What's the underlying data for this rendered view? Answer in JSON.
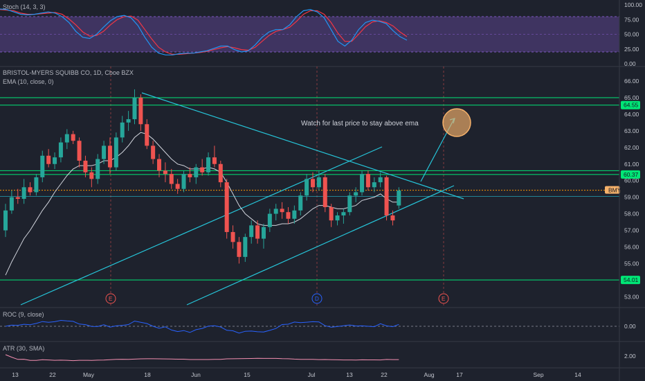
{
  "stoch_pane": {
    "label": "Stoch (14, 3, 3)",
    "ticks": [
      "100.00",
      "75.00",
      "50.00",
      "25.00",
      "0.00"
    ],
    "k_values": [
      93,
      92,
      88,
      84,
      83,
      84,
      86,
      88,
      86,
      80,
      70,
      55,
      45,
      43,
      50,
      62,
      73,
      80,
      82,
      78,
      65,
      45,
      28,
      18,
      15,
      15,
      17,
      18,
      18,
      20,
      22,
      26,
      30,
      30,
      24,
      20,
      22,
      32,
      45,
      54,
      58,
      58,
      66,
      80,
      90,
      92,
      88,
      78,
      58,
      38,
      30,
      40,
      58,
      70,
      74,
      72,
      68,
      56,
      46,
      40
    ],
    "d_values": [
      92,
      91,
      90,
      86,
      84,
      84,
      85,
      86,
      87,
      84,
      76,
      66,
      54,
      47,
      48,
      55,
      66,
      75,
      80,
      81,
      74,
      58,
      42,
      28,
      20,
      16,
      16,
      17,
      18,
      19,
      21,
      24,
      27,
      29,
      27,
      24,
      23,
      28,
      38,
      48,
      55,
      58,
      62,
      72,
      84,
      90,
      90,
      84,
      70,
      52,
      38,
      38,
      50,
      63,
      71,
      73,
      70,
      64,
      54,
      46
    ],
    "k_color": "#2196f3",
    "d_color": "#f23645",
    "band_color": "#7e57c2"
  },
  "main_pane": {
    "symbol_label": "BRISTOL-MYERS SQUIBB CO, 1D, Cboe BZX",
    "ema_label": "EMA (10, close, 0)",
    "price_ticks": [
      "66.00",
      "65.00",
      "64.00",
      "63.00",
      "62.00",
      "61.00",
      "60.00",
      "59.00",
      "58.00",
      "57.00",
      "56.00",
      "55.00",
      "54.00",
      "53.00"
    ],
    "level_tags": [
      {
        "text": "64.55",
        "price": 64.55
      },
      {
        "text": "60.37",
        "price": 60.37
      },
      {
        "text": "54.01",
        "price": 54.01
      }
    ],
    "last_price_tag": "BMY",
    "last_price": 59.42,
    "annotation": "Watch for last price to stay above ema",
    "earnings_markers": [
      "E",
      "D",
      "E"
    ],
    "up_color": "#26a69a",
    "down_color": "#ef5350",
    "level_color": "#00e676",
    "trendline_color": "#26c6da",
    "circle_color": "#f6b26b"
  },
  "candles": [
    [
      57.0,
      58.6,
      56.6,
      58.2
    ],
    [
      58.2,
      59.4,
      58.0,
      59.0
    ],
    [
      59.0,
      59.5,
      58.6,
      58.9
    ],
    [
      58.9,
      60.1,
      58.6,
      59.6
    ],
    [
      59.6,
      59.9,
      59.1,
      59.3
    ],
    [
      59.3,
      60.4,
      59.1,
      60.2
    ],
    [
      60.2,
      61.8,
      59.9,
      61.5
    ],
    [
      61.5,
      61.9,
      60.8,
      61.0
    ],
    [
      61.0,
      61.7,
      60.7,
      61.4
    ],
    [
      61.4,
      62.6,
      61.1,
      62.3
    ],
    [
      62.3,
      63.1,
      61.9,
      62.8
    ],
    [
      62.8,
      63.0,
      62.2,
      62.4
    ],
    [
      62.4,
      62.6,
      60.8,
      61.2
    ],
    [
      61.2,
      61.5,
      60.2,
      60.5
    ],
    [
      60.5,
      60.8,
      59.6,
      60.1
    ],
    [
      60.1,
      61.6,
      59.8,
      61.3
    ],
    [
      61.3,
      62.4,
      61.0,
      62.1
    ],
    [
      62.1,
      62.6,
      60.4,
      60.8
    ],
    [
      60.8,
      62.9,
      60.6,
      62.6
    ],
    [
      62.6,
      63.9,
      62.3,
      63.5
    ],
    [
      63.5,
      64.2,
      63.0,
      63.7
    ],
    [
      63.7,
      65.5,
      63.4,
      65.0
    ],
    [
      65.0,
      65.2,
      63.0,
      63.4
    ],
    [
      63.4,
      63.7,
      61.9,
      62.1
    ],
    [
      62.1,
      62.4,
      61.0,
      61.3
    ],
    [
      61.3,
      61.6,
      60.2,
      60.6
    ],
    [
      60.6,
      61.1,
      59.9,
      60.4
    ],
    [
      60.4,
      60.7,
      59.5,
      59.8
    ],
    [
      59.8,
      60.1,
      59.2,
      59.5
    ],
    [
      59.5,
      60.6,
      59.3,
      60.4
    ],
    [
      60.4,
      60.8,
      59.9,
      60.2
    ],
    [
      60.2,
      61.0,
      59.8,
      60.8
    ],
    [
      60.8,
      61.3,
      60.3,
      60.5
    ],
    [
      60.5,
      61.7,
      60.3,
      61.4
    ],
    [
      61.4,
      62.1,
      60.8,
      61.0
    ],
    [
      61.0,
      61.2,
      59.6,
      59.9
    ],
    [
      59.9,
      60.1,
      56.5,
      56.9
    ],
    [
      56.9,
      57.3,
      55.9,
      56.3
    ],
    [
      56.3,
      56.6,
      55.0,
      55.4
    ],
    [
      55.4,
      56.8,
      55.1,
      56.6
    ],
    [
      56.6,
      57.6,
      56.2,
      57.3
    ],
    [
      57.3,
      57.6,
      56.2,
      56.5
    ],
    [
      56.5,
      57.4,
      55.9,
      57.2
    ],
    [
      57.2,
      58.3,
      56.9,
      58.0
    ],
    [
      58.0,
      58.6,
      57.6,
      58.3
    ],
    [
      58.3,
      58.7,
      57.7,
      58.1
    ],
    [
      58.1,
      58.4,
      57.4,
      57.7
    ],
    [
      57.7,
      58.5,
      57.4,
      58.2
    ],
    [
      58.2,
      59.3,
      57.9,
      59.1
    ],
    [
      59.1,
      60.4,
      58.8,
      60.1
    ],
    [
      60.1,
      60.5,
      59.3,
      59.6
    ],
    [
      59.6,
      60.6,
      59.4,
      60.2
    ],
    [
      60.2,
      60.4,
      58.1,
      58.4
    ],
    [
      58.4,
      58.6,
      57.2,
      57.6
    ],
    [
      57.6,
      58.1,
      57.3,
      57.9
    ],
    [
      57.9,
      58.3,
      57.4,
      58.1
    ],
    [
      58.1,
      59.3,
      57.9,
      59.1
    ],
    [
      59.1,
      59.6,
      58.7,
      59.3
    ],
    [
      59.3,
      60.6,
      59.1,
      60.4
    ],
    [
      60.4,
      60.6,
      59.4,
      59.6
    ],
    [
      59.6,
      60.2,
      59.3,
      59.9
    ],
    [
      59.9,
      60.5,
      59.6,
      60.2
    ],
    [
      60.2,
      60.3,
      57.6,
      57.9
    ],
    [
      57.9,
      58.2,
      57.3,
      57.6
    ],
    [
      58.5,
      59.6,
      58.3,
      59.4
    ]
  ],
  "ema_values": [
    54.3,
    55.1,
    55.8,
    56.5,
    57.0,
    57.6,
    58.2,
    58.7,
    59.3,
    59.8,
    60.3,
    60.7,
    60.9,
    60.9,
    60.9,
    61.0,
    61.2,
    61.2,
    61.4,
    61.7,
    62.1,
    62.6,
    62.9,
    62.8,
    62.5,
    62.1,
    61.7,
    61.3,
    61.0,
    60.9,
    60.7,
    60.7,
    60.7,
    60.8,
    60.7,
    60.5,
    59.9,
    59.2,
    58.5,
    58.0,
    57.7,
    57.4,
    57.3,
    57.3,
    57.3,
    57.4,
    57.4,
    57.5,
    57.7,
    58.0,
    58.3,
    58.5,
    58.5,
    58.4,
    58.3,
    58.3,
    58.4,
    58.5,
    58.8,
    58.9,
    59.0,
    59.2,
    58.9,
    58.7,
    58.7
  ],
  "roc_pane": {
    "label": "ROC (9, close)",
    "tick": "0.00",
    "line_color": "#2962ff"
  },
  "atr_pane": {
    "label": "ATR (30, SMA)",
    "tick": "2.00",
    "line_color": "#f48fb1"
  },
  "x_axis": {
    "labels": [
      "13",
      "22",
      "May",
      "18",
      "Jun",
      "15",
      "Jul",
      "13",
      "22",
      "Aug",
      "17",
      "Sep",
      "14"
    ]
  }
}
